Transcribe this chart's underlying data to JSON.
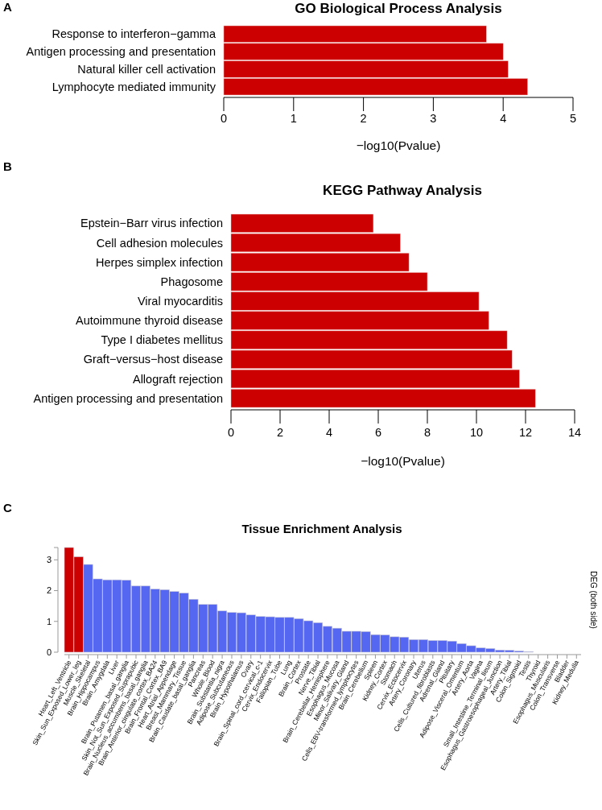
{
  "chart_data": [
    {
      "type": "bar",
      "orientation": "horizontal",
      "title": "GO Biological Process Analysis",
      "xlabel": "−log10(Pvalue)",
      "annotations": [
        "A"
      ],
      "categories": [
        "Response to interferon−gamma",
        "Antigen processing and presentation",
        "Natural killer cell activation",
        "Lymphocyte mediated immunity"
      ],
      "values": [
        3.76,
        4.0,
        4.07,
        4.35
      ],
      "color": "#cc0000",
      "xlim": [
        0,
        5
      ],
      "xticks": [
        0,
        1,
        2,
        3,
        4,
        5
      ],
      "grid": false
    },
    {
      "type": "bar",
      "orientation": "horizontal",
      "title": "KEGG Pathway Analysis",
      "xlabel": "−log10(Pvalue)",
      "annotations": [
        "B"
      ],
      "categories": [
        "Epstein−Barr virus infection",
        "Cell adhesion molecules",
        "Herpes simplex infection",
        "Phagosome",
        "Viral myocarditis",
        "Autoimmune thyroid disease",
        "Type I diabetes mellitus",
        "Graft−versus−host disease",
        "Allograft rejection",
        "Antigen processing and presentation"
      ],
      "values": [
        5.8,
        6.9,
        7.25,
        8.0,
        10.1,
        10.5,
        11.25,
        11.45,
        11.75,
        12.4
      ],
      "color": "#cc0000",
      "xlim": [
        0,
        14
      ],
      "xticks": [
        0,
        2,
        4,
        6,
        8,
        10,
        12,
        14
      ],
      "grid": false
    },
    {
      "type": "bar",
      "title": "Tissue Enrichment Analysis",
      "ylabel": "DEG (both side)",
      "annotations": [
        "C"
      ],
      "categories": [
        "Heart_Left_Ventricle",
        "Skin_Sun_Exposed_Lower_leg",
        "Muscle_Skeletal",
        "Brain_Hippocampus",
        "Brain_Amygdala",
        "Liver",
        "Brain_Putamen_basal_ganglia",
        "Skin_Not_Sun_Exposed_Suprapubic",
        "Brain_Nucleus_accumbens_basal_ganglia",
        "Brain_Anterior_cingulate_cortex_BA24",
        "Brain_Frontal_Cortex_BA9",
        "Heart_Atrial_Appendage",
        "Breast_Mammary_Tissue",
        "Brain_Caudate_basal_ganglia",
        "Pancreas",
        "Whole_Blood",
        "Brain_Substantia_nigra",
        "Adipose_Subcutaneous",
        "Brain_Hypothalamus",
        "Ovary",
        "Brain_Spinal_cord_cervical_c-1",
        "Cervix_Endocervix",
        "Fallopian_Tube",
        "Lung",
        "Brain_Cortex",
        "Prostate",
        "Nerve_Tibial",
        "Brain_Cerebellar_Hemisphere",
        "Esophagus_Mucosa",
        "Minor_Salivary_Gland",
        "Cells_EBV-transformed_lymphocytes",
        "Brain_Cerebellum",
        "Spleen",
        "Kidney_Cortex",
        "Stomach",
        "Cervix_Ectocervix",
        "Artery_Coronary",
        "Uterus",
        "Cells_Cultured_fibroblasts",
        "Adrenal_Gland",
        "Pituitary",
        "Adipose_Visceral_Omentum",
        "Artery_Aorta",
        "Vagina",
        "Small_Intestine_Terminal_Ileum",
        "Esophagus_Gastroesophageal_Junction",
        "Artery_Tibial",
        "Colon_Sigmoid",
        "Testis",
        "Thyroid",
        "Esophagus_Muscularis",
        "Colon_Transverse",
        "Bladder",
        "Kidney_Medulla"
      ],
      "values": [
        3.4,
        3.1,
        2.85,
        2.38,
        2.35,
        2.35,
        2.34,
        2.15,
        2.15,
        2.05,
        2.03,
        1.97,
        1.92,
        1.72,
        1.55,
        1.55,
        1.34,
        1.29,
        1.28,
        1.21,
        1.16,
        1.15,
        1.13,
        1.13,
        1.09,
        1.02,
        0.96,
        0.84,
        0.78,
        0.68,
        0.68,
        0.67,
        0.57,
        0.56,
        0.5,
        0.49,
        0.41,
        0.41,
        0.38,
        0.38,
        0.36,
        0.28,
        0.21,
        0.14,
        0.12,
        0.07,
        0.06,
        0.04,
        0.02,
        0,
        0,
        0,
        0,
        0
      ],
      "colors": [
        "#cc0000",
        "#cc0000",
        "#5566f0",
        "#5566f0",
        "#5566f0",
        "#5566f0",
        "#5566f0",
        "#5566f0",
        "#5566f0",
        "#5566f0",
        "#5566f0",
        "#5566f0",
        "#5566f0",
        "#5566f0",
        "#5566f0",
        "#5566f0",
        "#5566f0",
        "#5566f0",
        "#5566f0",
        "#5566f0",
        "#5566f0",
        "#5566f0",
        "#5566f0",
        "#5566f0",
        "#5566f0",
        "#5566f0",
        "#5566f0",
        "#5566f0",
        "#5566f0",
        "#5566f0",
        "#5566f0",
        "#5566f0",
        "#5566f0",
        "#5566f0",
        "#5566f0",
        "#5566f0",
        "#5566f0",
        "#5566f0",
        "#5566f0",
        "#5566f0",
        "#5566f0",
        "#5566f0",
        "#5566f0",
        "#5566f0",
        "#5566f0",
        "#5566f0",
        "#5566f0",
        "#5566f0",
        "#5566f0",
        "#5566f0",
        "#5566f0",
        "#5566f0",
        "#5566f0",
        "#5566f0"
      ],
      "ylim": [
        0,
        3.4
      ],
      "yticks": [
        0,
        1,
        2,
        3,
        {
          "value": 3.4,
          "label": null
        }
      ],
      "grid": false
    }
  ]
}
